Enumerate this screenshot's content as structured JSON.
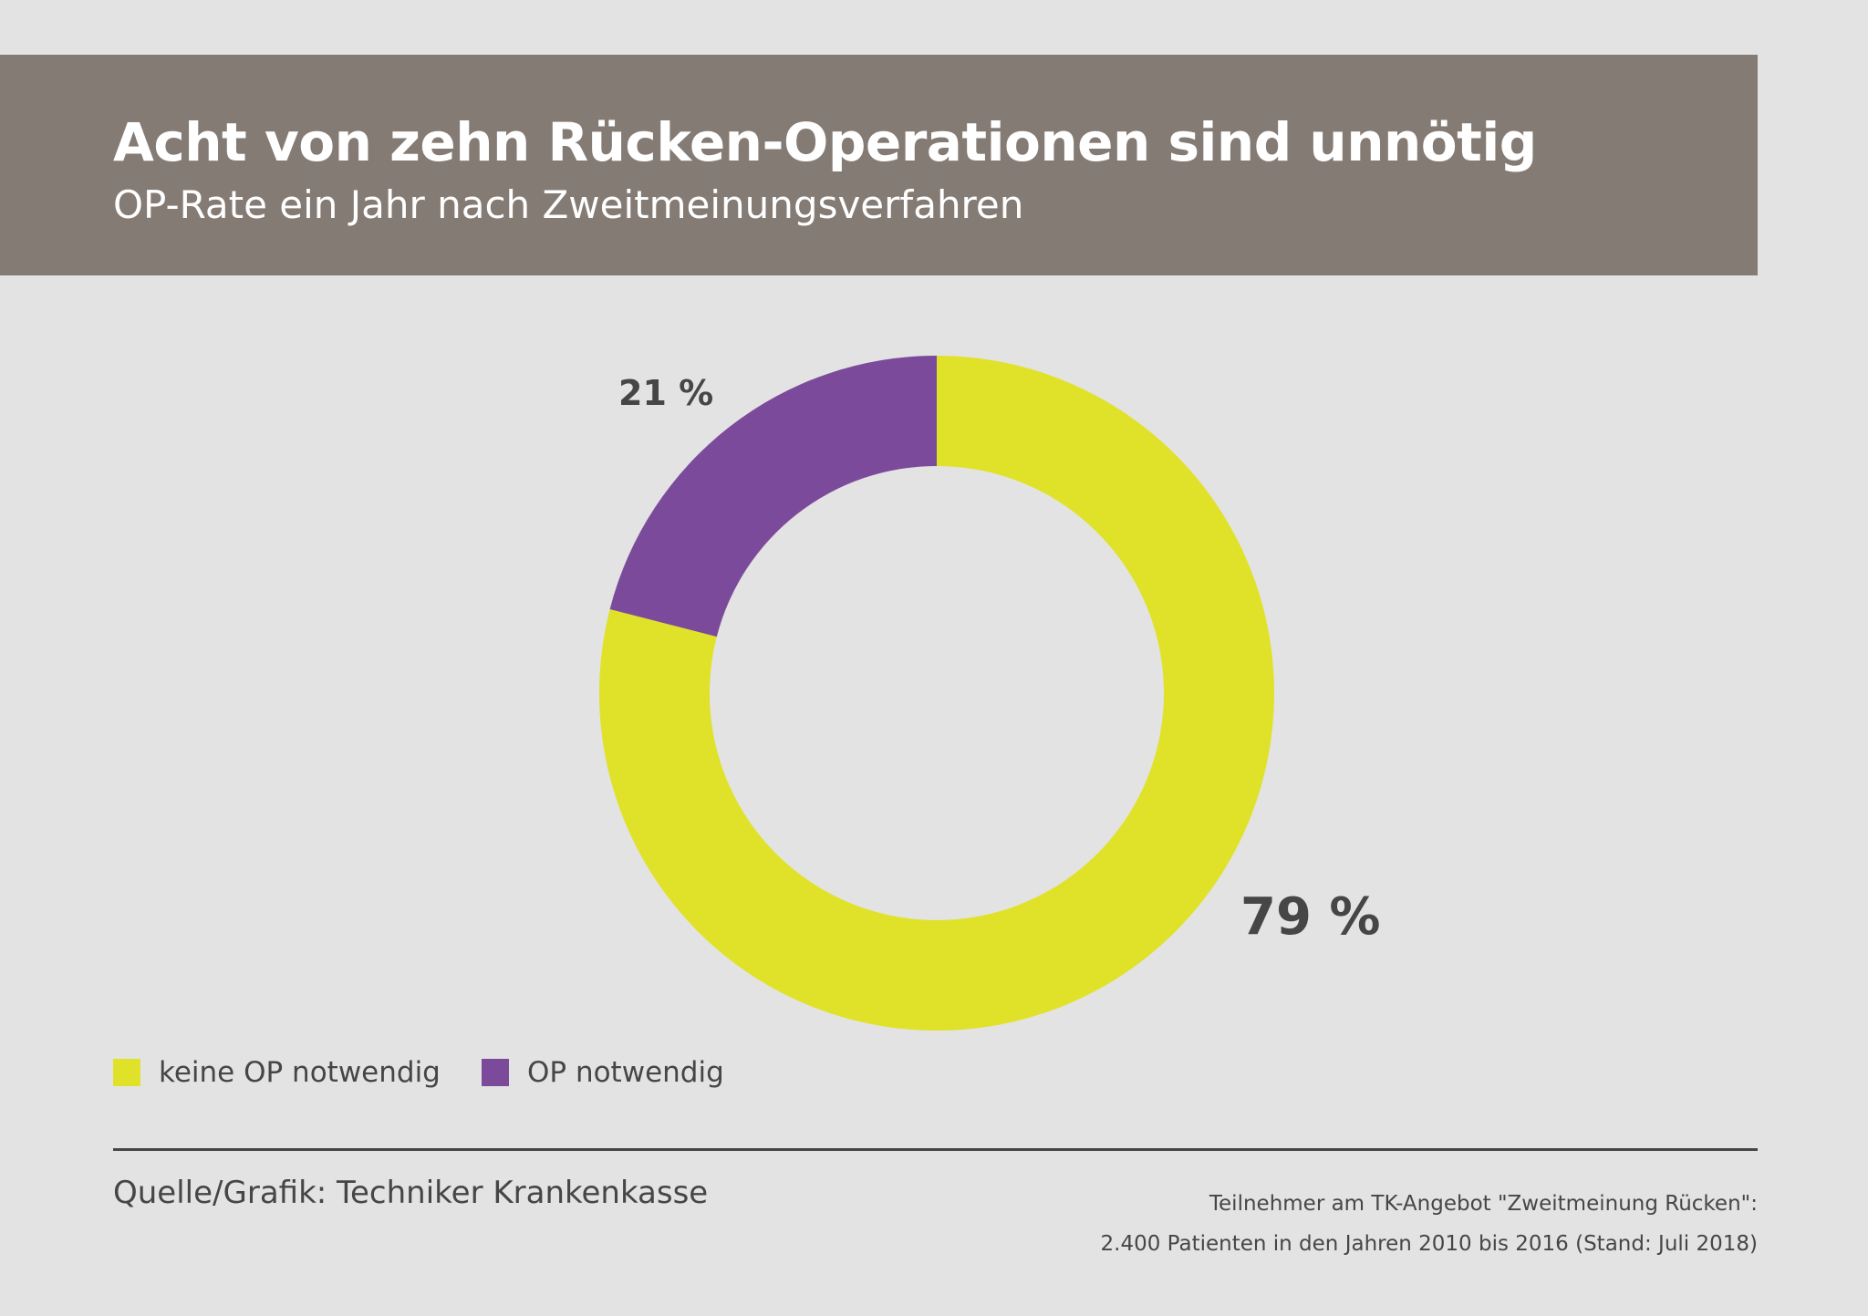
{
  "header": {
    "title": "Acht von zehn Rücken-Operationen sind unnötig",
    "subtitle": "OP-Rate ein Jahr nach Zweitmeinungsverfahren"
  },
  "chart_data": {
    "type": "pie",
    "variant": "donut",
    "slices": [
      {
        "name": "keine OP notwendig",
        "value": 79,
        "label": "79 %",
        "color": "#e0e22a"
      },
      {
        "name": "OP notwendig",
        "value": 21,
        "label": "21 %",
        "color": "#7c4a9b"
      }
    ],
    "legend": {
      "placement": "bottom-left",
      "entries": [
        "keine OP notwendig",
        "OP notwendig"
      ]
    }
  },
  "footer": {
    "source": "Quelle/Grafik: Techniker Krankenkasse",
    "note_line1": "Teilnehmer am TK-Angebot \"Zweitmeinung Rücken\":",
    "note_line2": "2.400 Patienten in den Jahren 2010 bis 2016 (Stand: Juli 2018)"
  },
  "colors": {
    "background": "#e3e3e3",
    "header_bg": "#857b75",
    "text": "#464646"
  }
}
